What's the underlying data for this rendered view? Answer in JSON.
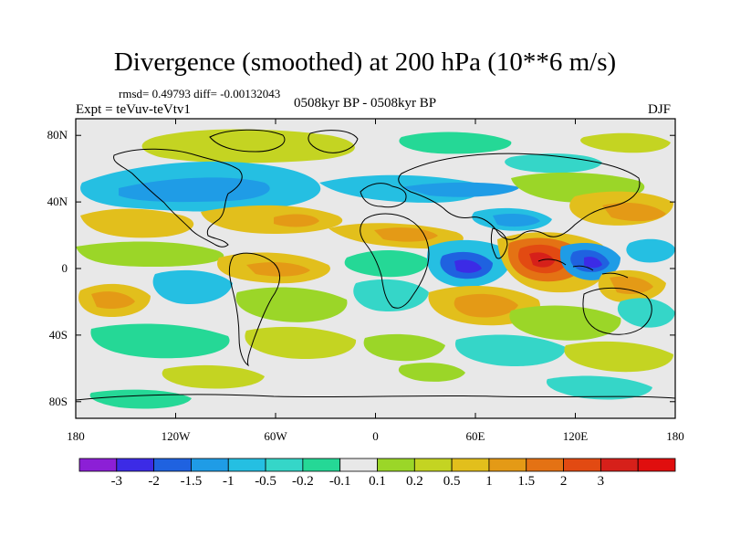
{
  "title": "Divergence (smoothed) at 200 hPa (10**6 m/s)",
  "stats": "rmsd= 0.49793 diff= -0.00132043",
  "expt": "Expt = teVuv-teVtv1",
  "period": "0508kyr BP - 0508kyr BP",
  "season": "DJF",
  "map": {
    "lon_range": [
      -180,
      180
    ],
    "lat_range": [
      -90,
      90
    ],
    "lat_ticks": [
      {
        "value": 80,
        "label": "80N"
      },
      {
        "value": 40,
        "label": "40N"
      },
      {
        "value": 0,
        "label": "0"
      },
      {
        "value": -40,
        "label": "40S"
      },
      {
        "value": -80,
        "label": "80S"
      }
    ],
    "lon_ticks": [
      {
        "value": -180,
        "label": "180"
      },
      {
        "value": -120,
        "label": "120W"
      },
      {
        "value": -60,
        "label": "60W"
      },
      {
        "value": 0,
        "label": "0"
      },
      {
        "value": 60,
        "label": "60E"
      },
      {
        "value": 120,
        "label": "120E"
      },
      {
        "value": 180,
        "label": "180"
      }
    ],
    "background_color": "#e8e8e8",
    "coastline_color": "#000000"
  },
  "colorbar": {
    "colors": [
      "#8c1fd6",
      "#3c2be6",
      "#1f62e0",
      "#1f9ce6",
      "#25bfe2",
      "#35d6c8",
      "#25d896",
      "#e8e8e8",
      "#9bd628",
      "#c4d422",
      "#e2bf1c",
      "#e49a16",
      "#e47214",
      "#e24a12",
      "#d6201a",
      "#e00e0e"
    ],
    "labels": [
      "-3",
      "-2",
      "-1.5",
      "-1",
      "-0.5",
      "-0.2",
      "-0.1",
      "0.1",
      "0.2",
      "0.5",
      "1",
      "1.5",
      "2",
      "3"
    ]
  }
}
